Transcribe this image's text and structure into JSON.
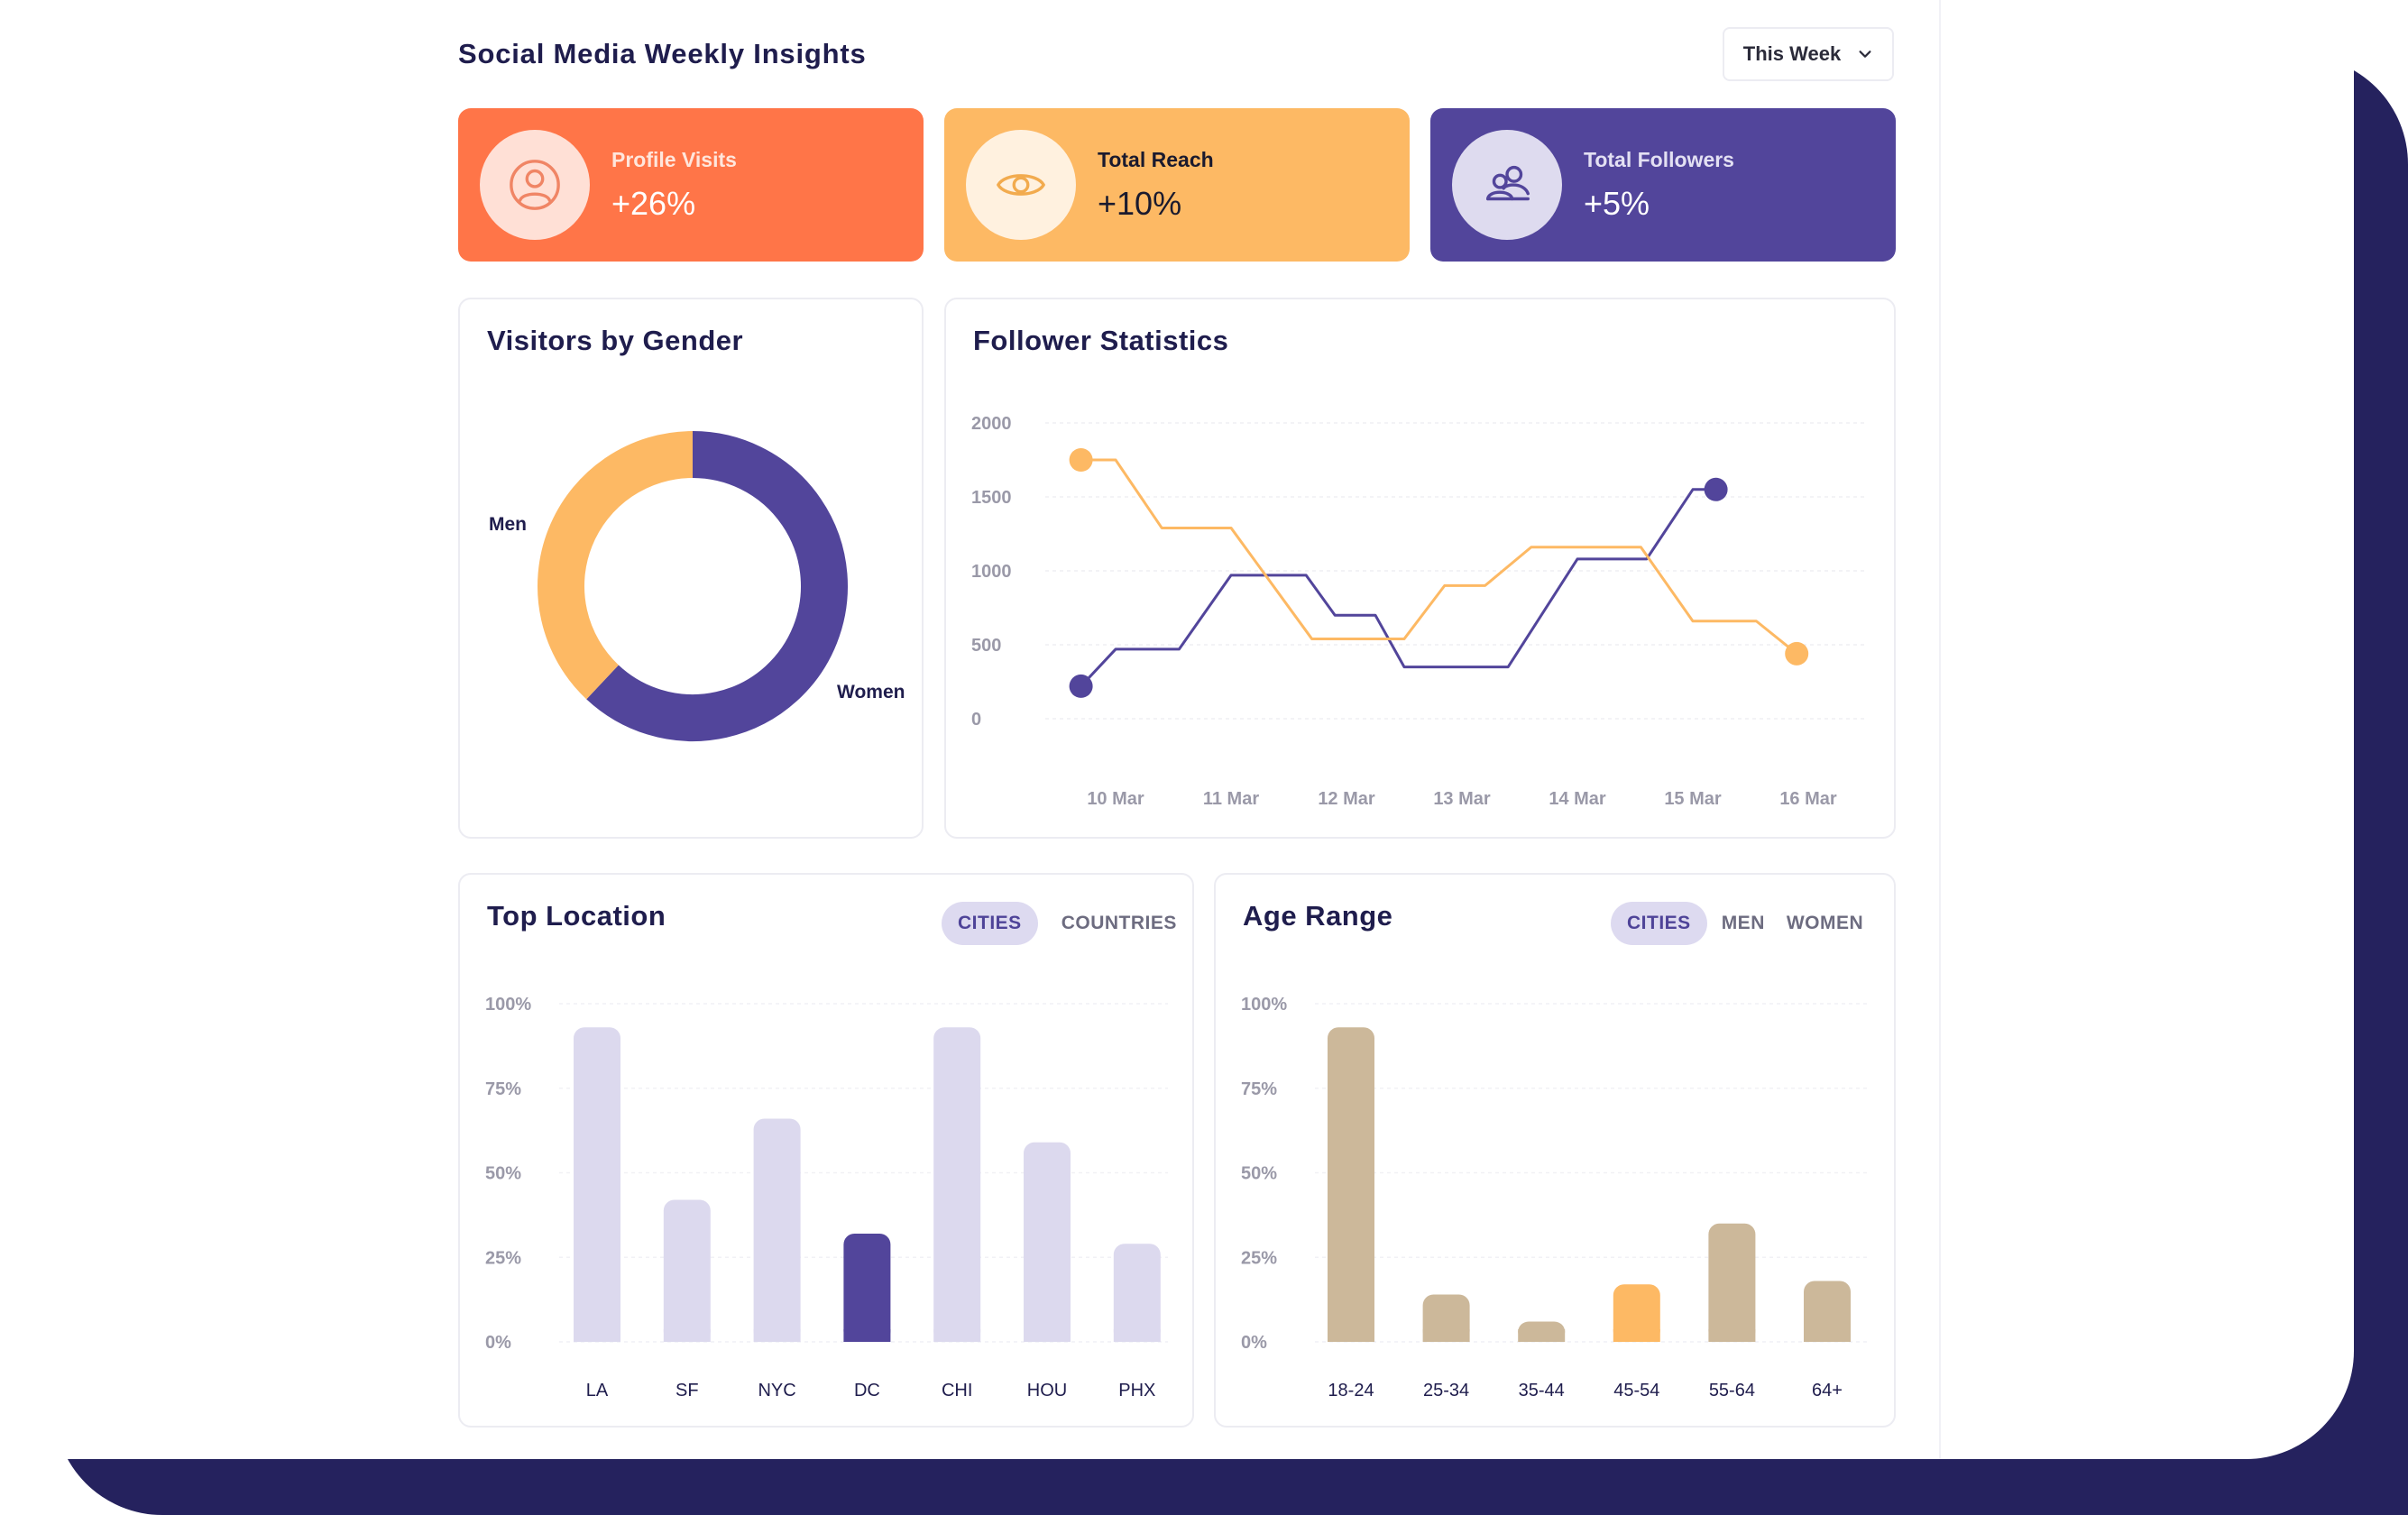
{
  "page_title": "Social Media Weekly Insights",
  "period_select": {
    "value": "This Week",
    "icon": "chevron-down-icon"
  },
  "stats": [
    {
      "label": "Profile Visits",
      "value": "+26%",
      "icon": "user-circle-icon",
      "bg": "#ff7548",
      "circle": "#ffe0d6",
      "icon_color": "#f08565",
      "text_color": "#ffe6dc",
      "value_color": "#ffffff"
    },
    {
      "label": "Total Reach",
      "value": "+10%",
      "icon": "eye-icon",
      "bg": "#fdb964",
      "circle": "#fff1df",
      "icon_color": "#f2ab4e",
      "text_color": "#1a1a2e",
      "value_color": "#1a1a2e"
    },
    {
      "label": "Total Followers",
      "value": "+5%",
      "icon": "users-icon",
      "bg": "#52459b",
      "circle": "#dedbef",
      "icon_color": "#52459b",
      "text_color": "#e3e0f3",
      "value_color": "#ffffff"
    }
  ],
  "gender": {
    "title": "Visitors by Gender",
    "chart_data": {
      "type": "pie",
      "labels": [
        "Women",
        "Men"
      ],
      "values": [
        62,
        38
      ],
      "colors": [
        "#52459b",
        "#fdb964"
      ]
    }
  },
  "followers": {
    "title": "Follower Statistics",
    "chart_data": {
      "type": "line",
      "x": [
        "10 Mar",
        "11 Mar",
        "12 Mar",
        "13 Mar",
        "14 Mar",
        "15 Mar",
        "16 Mar"
      ],
      "y_ticks": [
        "2000",
        "1500",
        "1000",
        "500",
        "0"
      ],
      "ylim": [
        0,
        2000
      ],
      "grid": true,
      "series": [
        {
          "color": "#52459b",
          "points": [
            [
              9.7,
              220
            ],
            [
              10.0,
              470
            ],
            [
              10.55,
              470
            ],
            [
              11.0,
              970
            ],
            [
              11.65,
              970
            ],
            [
              11.9,
              700
            ],
            [
              12.25,
              700
            ],
            [
              12.5,
              350
            ],
            [
              13.4,
              350
            ],
            [
              14.0,
              1080
            ],
            [
              14.6,
              1080
            ],
            [
              15.0,
              1550
            ],
            [
              15.2,
              1550
            ]
          ]
        },
        {
          "color": "#fdb964",
          "points": [
            [
              9.7,
              1750
            ],
            [
              10.0,
              1750
            ],
            [
              10.4,
              1290
            ],
            [
              11.0,
              1290
            ],
            [
              11.7,
              540
            ],
            [
              12.5,
              540
            ],
            [
              12.85,
              900
            ],
            [
              13.2,
              900
            ],
            [
              13.6,
              1160
            ],
            [
              14.55,
              1160
            ],
            [
              15.0,
              660
            ],
            [
              15.55,
              660
            ],
            [
              15.9,
              440
            ]
          ]
        }
      ]
    }
  },
  "location": {
    "title": "Top Location",
    "tabs": [
      "CITIES",
      "COUNTRIES"
    ],
    "chart_data": {
      "type": "bar",
      "categories": [
        "LA",
        "SF",
        "NYC",
        "DC",
        "CHI",
        "HOU",
        "PHX"
      ],
      "values": [
        93,
        42,
        66,
        32,
        93,
        59,
        29
      ],
      "highlight_index": 3,
      "y_ticks": [
        "100%",
        "75%",
        "50%",
        "25%",
        "0%"
      ],
      "ylim": [
        0,
        100
      ],
      "bar_color": "#dcd9ee",
      "highlight_color": "#52459b"
    }
  },
  "age": {
    "title": "Age Range",
    "tabs": [
      "CITIES",
      "MEN",
      "WOMEN"
    ],
    "chart_data": {
      "type": "bar",
      "categories": [
        "18-24",
        "25-34",
        "35-44",
        "45-54",
        "55-64",
        "64+"
      ],
      "values": [
        93,
        14,
        6,
        17,
        35,
        18
      ],
      "highlight_index": 3,
      "y_ticks": [
        "100%",
        "75%",
        "50%",
        "25%",
        "0%"
      ],
      "ylim": [
        0,
        100
      ],
      "bar_color": "#ccb89a",
      "highlight_color": "#fdb964"
    }
  }
}
